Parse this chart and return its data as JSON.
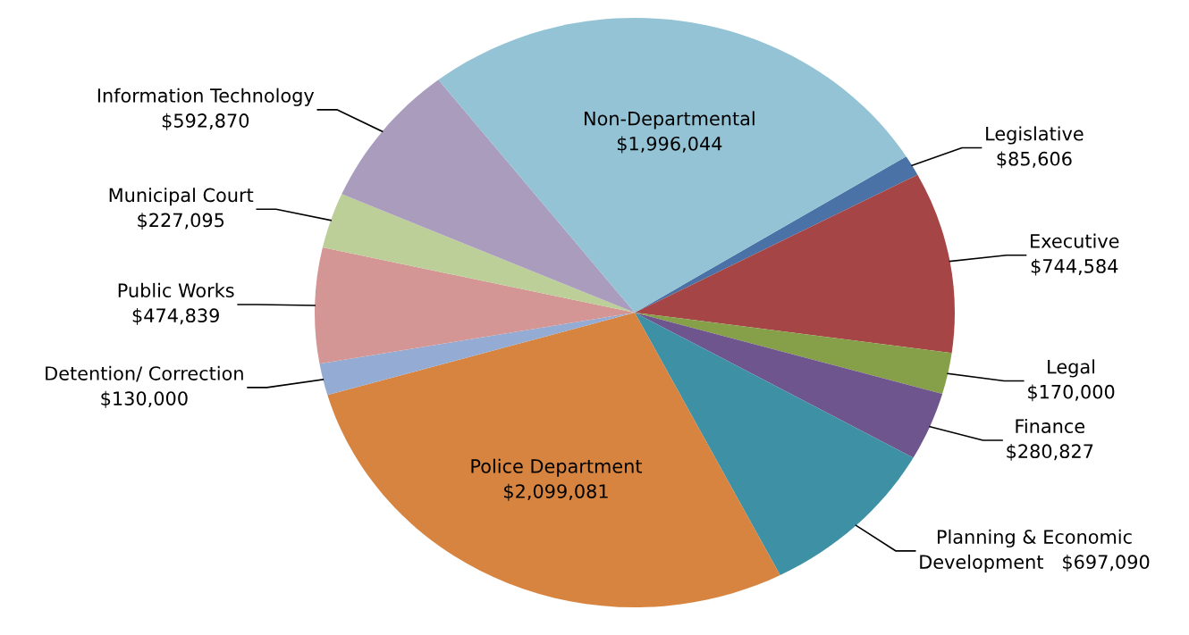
{
  "chart_data": {
    "type": "pie",
    "categories": [
      "Legislative",
      "Executive",
      "Legal",
      "Finance",
      "Planning & Economic Development",
      "Police Department",
      "Detention/ Correction",
      "Public Works",
      "Municipal Court",
      "Information Technology",
      "Non-Departmental"
    ],
    "values": [
      85606,
      744584,
      170000,
      280827,
      697090,
      2099081,
      130000,
      474839,
      227095,
      592870,
      1996044
    ],
    "value_labels": [
      "$85,606",
      "$744,584",
      "$170,000",
      "$280,827",
      "$697,090",
      "$2,099,081",
      "$130,000",
      "$474,839",
      "$227,095",
      "$592,870",
      "$1,996,044"
    ],
    "colors": [
      "#4a72a6",
      "#a54545",
      "#86a04a",
      "#6f558d",
      "#3e91a5",
      "#d6843f",
      "#94acd4",
      "#d49694",
      "#bccf98",
      "#a99cbd",
      "#93c3d5"
    ],
    "legend": false
  }
}
